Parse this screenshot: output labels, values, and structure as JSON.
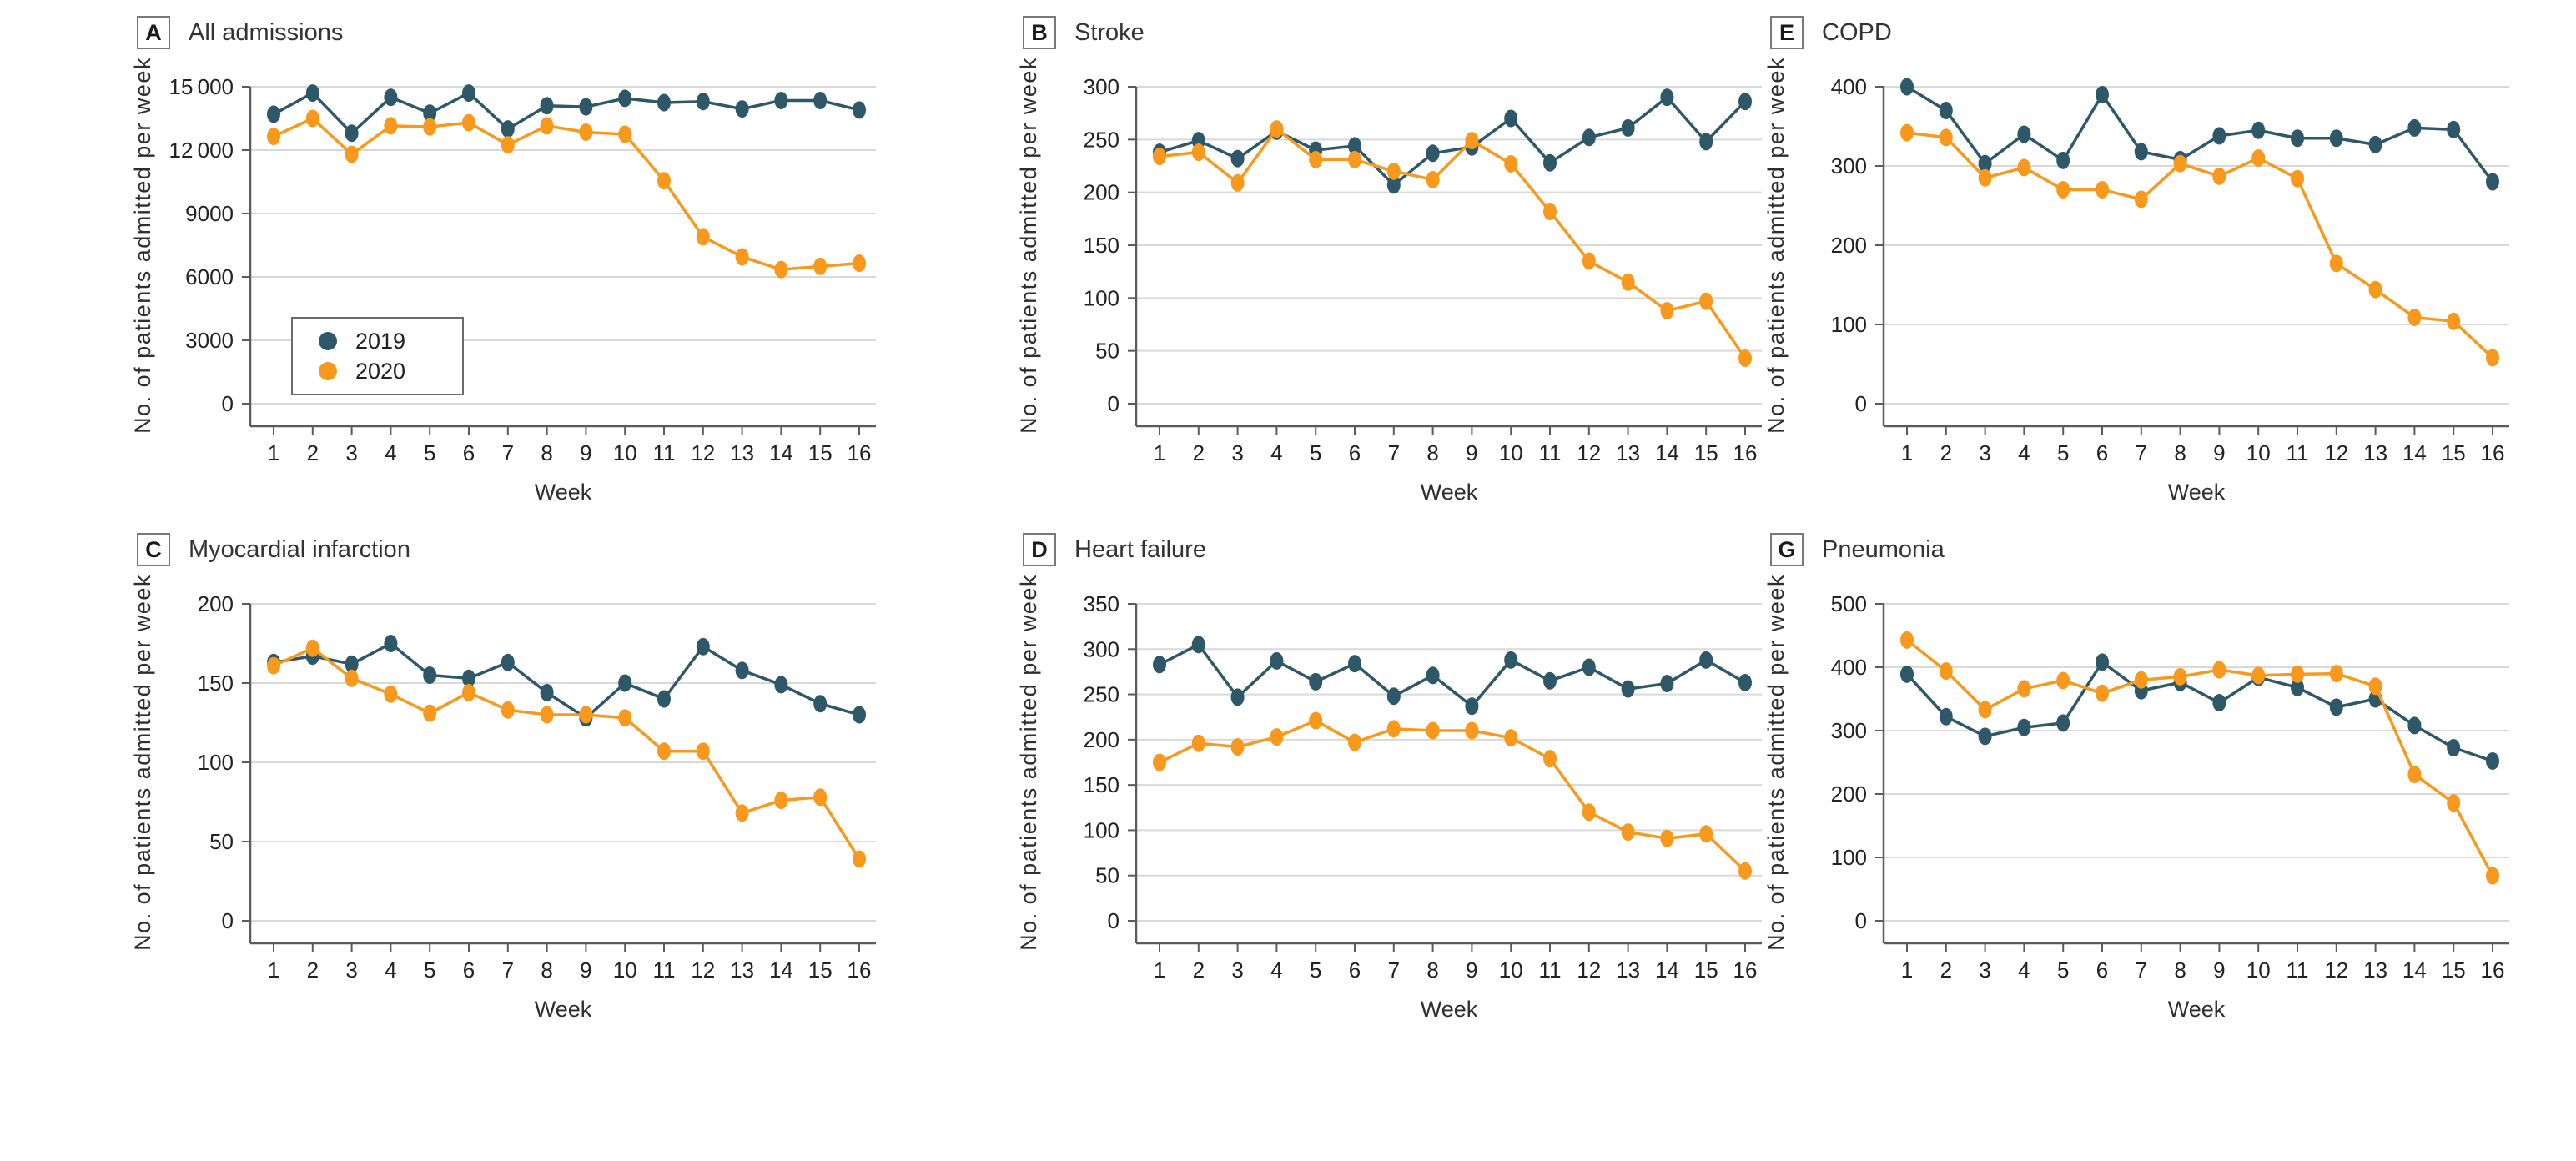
{
  "figure": {
    "xlabel": "Week",
    "ylabel": "No. of patients admitted per week",
    "legend": {
      "items": [
        {
          "label": "2019"
        },
        {
          "label": "2020"
        }
      ]
    }
  },
  "colors": {
    "series_2019": "#2E5868",
    "series_2020": "#F8991D",
    "gridline": "#D9D9D9",
    "axis": "#5A5B5D",
    "text": "#222222",
    "box_border": "#77787B"
  },
  "chart_data": [
    {
      "type": "line",
      "panel_letter": "A",
      "title": "All admissions",
      "xlabel": "Week",
      "ylabel": "No. of patients admitted per week",
      "categories": [
        "1",
        "2",
        "3",
        "4",
        "5",
        "6",
        "7",
        "8",
        "9",
        "10",
        "11",
        "12",
        "13",
        "14",
        "15",
        "16"
      ],
      "ylim": [
        0,
        15000
      ],
      "yticks": [
        0,
        3000,
        6000,
        9000,
        12000,
        15000
      ],
      "ytick_labels": [
        "0",
        "3000",
        "6000",
        "9000",
        "12 000",
        "15 000"
      ],
      "grid": true,
      "legend": true,
      "legend_position": "inside-lower-left",
      "series": [
        {
          "name": "2019",
          "color": "#2E5868",
          "values": [
            13700,
            14700,
            12800,
            14500,
            13750,
            14700,
            13000,
            14100,
            14050,
            14450,
            14250,
            14300,
            13950,
            14350,
            14350,
            13900
          ]
        },
        {
          "name": "2020",
          "color": "#F8991D",
          "values": [
            12650,
            13500,
            11800,
            13150,
            13100,
            13300,
            12250,
            13150,
            12850,
            12750,
            10550,
            7900,
            6950,
            6350,
            6500,
            6650
          ]
        }
      ]
    },
    {
      "type": "line",
      "panel_letter": "B",
      "title": "Stroke",
      "xlabel": "Week",
      "ylabel": "No. of patients admitted per week",
      "categories": [
        "1",
        "2",
        "3",
        "4",
        "5",
        "6",
        "7",
        "8",
        "9",
        "10",
        "11",
        "12",
        "13",
        "14",
        "15",
        "16"
      ],
      "ylim": [
        0,
        300
      ],
      "yticks": [
        0,
        50,
        100,
        150,
        200,
        250,
        300
      ],
      "ytick_labels": [
        "0",
        "50",
        "100",
        "150",
        "200",
        "250",
        "300"
      ],
      "grid": true,
      "legend": false,
      "legend_position": null,
      "series": [
        {
          "name": "2019",
          "color": "#2E5868",
          "values": [
            238,
            249,
            232,
            258,
            240,
            244,
            207,
            237,
            243,
            270,
            228,
            252,
            261,
            290,
            248,
            286
          ]
        },
        {
          "name": "2020",
          "color": "#F8991D",
          "values": [
            234,
            238,
            209,
            260,
            231,
            231,
            220,
            212,
            249,
            227,
            182,
            135,
            115,
            88,
            97,
            43
          ]
        }
      ]
    },
    {
      "type": "line",
      "panel_letter": "E",
      "title": "COPD",
      "xlabel": "Week",
      "ylabel": "No. of patients admitted per week",
      "categories": [
        "1",
        "2",
        "3",
        "4",
        "5",
        "6",
        "7",
        "8",
        "9",
        "10",
        "11",
        "12",
        "13",
        "14",
        "15",
        "16"
      ],
      "ylim": [
        0,
        400
      ],
      "yticks": [
        0,
        100,
        200,
        300,
        400
      ],
      "ytick_labels": [
        "0",
        "100",
        "200",
        "300",
        "400"
      ],
      "grid": true,
      "legend": false,
      "legend_position": null,
      "series": [
        {
          "name": "2019",
          "color": "#2E5868",
          "values": [
            400,
            370,
            303,
            340,
            307,
            390,
            318,
            308,
            338,
            345,
            335,
            335,
            327,
            348,
            346,
            280
          ]
        },
        {
          "name": "2020",
          "color": "#F8991D",
          "values": [
            342,
            336,
            285,
            298,
            270,
            270,
            258,
            303,
            287,
            310,
            284,
            177,
            144,
            109,
            104,
            58
          ]
        }
      ]
    },
    {
      "type": "line",
      "panel_letter": "C",
      "title": "Myocardial infarction",
      "xlabel": "Week",
      "ylabel": "No. of patients admitted per week",
      "categories": [
        "1",
        "2",
        "3",
        "4",
        "5",
        "6",
        "7",
        "8",
        "9",
        "10",
        "11",
        "12",
        "13",
        "14",
        "15",
        "16"
      ],
      "ylim": [
        0,
        200
      ],
      "yticks": [
        0,
        50,
        100,
        150,
        200
      ],
      "ytick_labels": [
        "0",
        "50",
        "100",
        "150",
        "200"
      ],
      "grid": true,
      "legend": false,
      "legend_position": null,
      "series": [
        {
          "name": "2019",
          "color": "#2E5868",
          "values": [
            163,
            167,
            162,
            175,
            155,
            153,
            163,
            144,
            128,
            150,
            140,
            173,
            158,
            149,
            137,
            130
          ]
        },
        {
          "name": "2020",
          "color": "#F8991D",
          "values": [
            161,
            172,
            153,
            143,
            131,
            144,
            133,
            130,
            130,
            128,
            107,
            107,
            68,
            76,
            78,
            39
          ]
        }
      ]
    },
    {
      "type": "line",
      "panel_letter": "D",
      "title": "Heart failure",
      "xlabel": "Week",
      "ylabel": "No. of patients admitted per week",
      "categories": [
        "1",
        "2",
        "3",
        "4",
        "5",
        "6",
        "7",
        "8",
        "9",
        "10",
        "11",
        "12",
        "13",
        "14",
        "15",
        "16"
      ],
      "ylim": [
        0,
        350
      ],
      "yticks": [
        0,
        50,
        100,
        150,
        200,
        250,
        300,
        350
      ],
      "ytick_labels": [
        "0",
        "50",
        "100",
        "150",
        "200",
        "250",
        "300",
        "350"
      ],
      "grid": true,
      "legend": false,
      "legend_position": null,
      "series": [
        {
          "name": "2019",
          "color": "#2E5868",
          "values": [
            283,
            305,
            247,
            287,
            264,
            284,
            248,
            271,
            237,
            288,
            265,
            280,
            256,
            262,
            288,
            263
          ]
        },
        {
          "name": "2020",
          "color": "#F8991D",
          "values": [
            175,
            196,
            192,
            203,
            221,
            197,
            212,
            210,
            210,
            202,
            179,
            120,
            98,
            91,
            96,
            55
          ]
        }
      ]
    },
    {
      "type": "line",
      "panel_letter": "G",
      "title": "Pneumonia",
      "xlabel": "Week",
      "ylabel": "No. of patients admitted per week",
      "categories": [
        "1",
        "2",
        "3",
        "4",
        "5",
        "6",
        "7",
        "8",
        "9",
        "10",
        "11",
        "12",
        "13",
        "14",
        "15",
        "16"
      ],
      "ylim": [
        0,
        500
      ],
      "yticks": [
        0,
        100,
        200,
        300,
        400,
        500
      ],
      "ytick_labels": [
        "0",
        "100",
        "200",
        "300",
        "400",
        "500"
      ],
      "grid": true,
      "legend": false,
      "legend_position": null,
      "series": [
        {
          "name": "2019",
          "color": "#2E5868",
          "values": [
            389,
            322,
            291,
            305,
            312,
            408,
            363,
            376,
            344,
            384,
            368,
            337,
            350,
            308,
            273,
            252
          ]
        },
        {
          "name": "2020",
          "color": "#F8991D",
          "values": [
            443,
            394,
            333,
            366,
            379,
            359,
            380,
            385,
            396,
            387,
            389,
            390,
            370,
            231,
            186,
            71
          ]
        }
      ]
    }
  ]
}
